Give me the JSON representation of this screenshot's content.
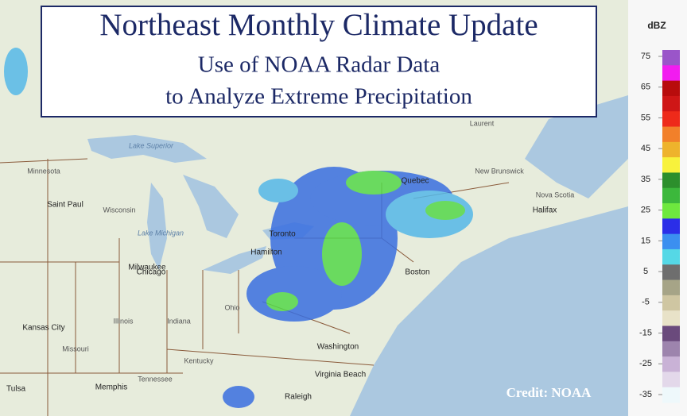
{
  "header": {
    "title": "Northeast Monthly Climate Update",
    "subtitle_lines": [
      "Use of NOAA Radar Data",
      "to Analyze Extreme Precipitation"
    ]
  },
  "credit": "Credit: NOAA",
  "legend": {
    "unit": "dBZ",
    "ticks": [
      75,
      65,
      55,
      45,
      35,
      25,
      15,
      5,
      -5,
      -15,
      -25,
      -35
    ],
    "colors": [
      "#9a55c9",
      "#f21cf0",
      "#b80c0c",
      "#cf1616",
      "#ee2a1a",
      "#f2802a",
      "#eeb32c",
      "#f8f23c",
      "#2c8f2c",
      "#3cb83c",
      "#6ee83e",
      "#2b2ee8",
      "#3b8ff0",
      "#55d8e6",
      "#6e6e6e",
      "#a6a487",
      "#cfc6a2",
      "#e8e2c8",
      "#6a4a7c",
      "#9d84ad",
      "#c9b2d6",
      "#e3d8ea",
      "#eef8fb"
    ]
  },
  "map": {
    "labels": [
      "Lake Superior",
      "Minnesota",
      "Saint Paul",
      "Wisconsin",
      "Lake Michigan",
      "Milwaukee",
      "Chicago",
      "Ohio",
      "Illinois",
      "Indiana",
      "Kansas City",
      "Missouri",
      "Kentucky",
      "Tennessee",
      "Tulsa",
      "Memphis",
      "Raleigh",
      "Virginia Beach",
      "Washington",
      "Toronto",
      "Hamilton",
      "Boston",
      "Quebec",
      "New Brunswick",
      "Nova Scotia",
      "Halifax",
      "Laurent"
    ]
  }
}
